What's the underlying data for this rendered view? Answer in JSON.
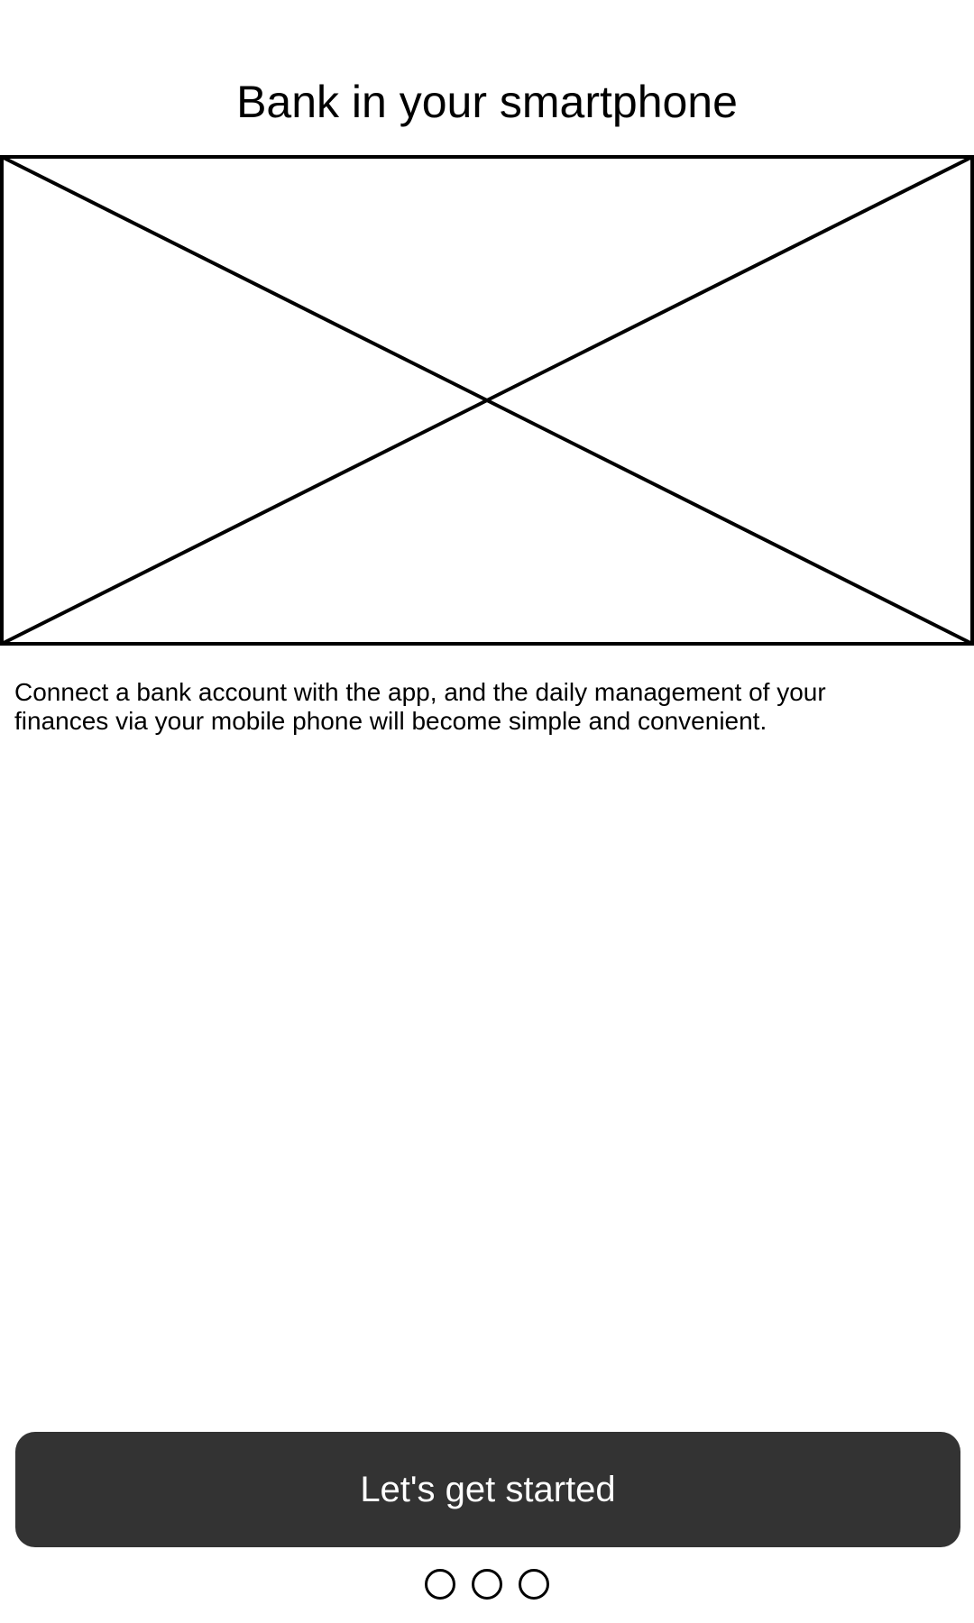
{
  "header": {
    "title": "Bank in your smartphone"
  },
  "hero": {
    "image_icon": "image-placeholder-icon"
  },
  "content": {
    "description": "Connect a bank account with the app, and the daily management of your finances via your mobile phone will become simple and convenient."
  },
  "actions": {
    "start_label": "Let's get started",
    "button_color": "#333333",
    "button_text_color": "#ffffff"
  },
  "pager": {
    "page_count": 3
  }
}
